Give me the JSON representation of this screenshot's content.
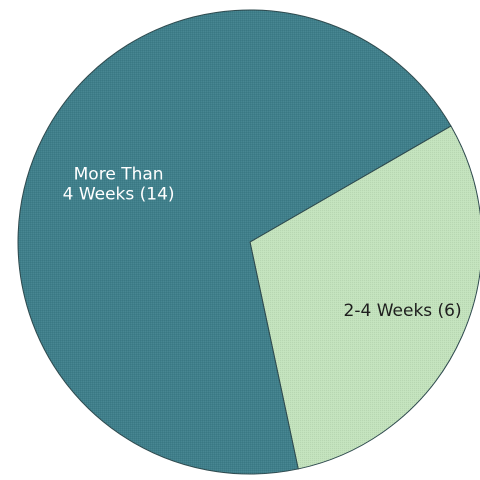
{
  "chart_data": {
    "type": "pie",
    "title": "",
    "slices": [
      {
        "label_lines": [
          "2-4 Weeks (6)"
        ],
        "value": 6,
        "color": "#c3e3bd",
        "label_color": "#1e1e1e"
      },
      {
        "label_lines": [
          "More Than",
          "4 Weeks (14)"
        ],
        "value": 14,
        "color": "#3f7f8b",
        "label_color": "#ffffff"
      }
    ],
    "start_angle_deg": 60,
    "edge_color": "#2e4a4e",
    "legend": "none"
  }
}
